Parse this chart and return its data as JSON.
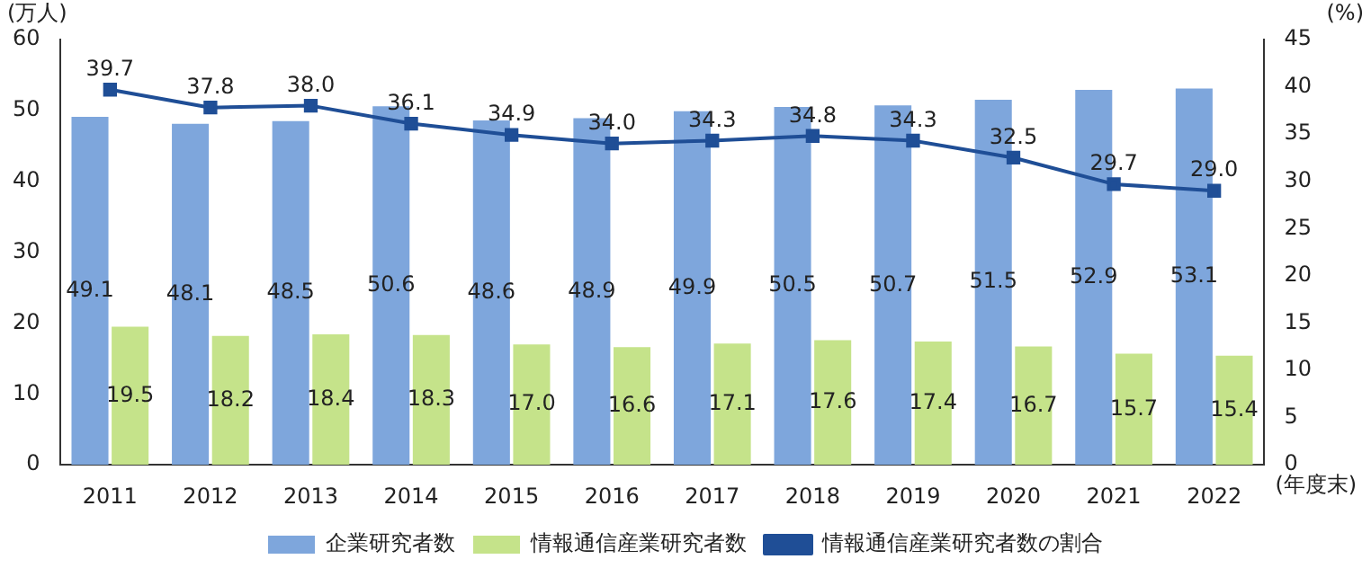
{
  "chart_data": {
    "type": "bar",
    "categories": [
      "2011",
      "2012",
      "2013",
      "2014",
      "2015",
      "2016",
      "2017",
      "2018",
      "2019",
      "2020",
      "2021",
      "2022"
    ],
    "xlabel": "(年度末)",
    "ylabel": "(万人)",
    "y2label": "(%)",
    "series": [
      {
        "name": "企業研究者数",
        "color": "#7ea6dc",
        "values": [
          49.1,
          48.1,
          48.5,
          50.6,
          48.6,
          48.9,
          49.9,
          50.5,
          50.7,
          51.5,
          52.9,
          53.1
        ],
        "value_labels": [
          "49.1",
          "48.1",
          "48.5",
          "50.6",
          "48.6",
          "48.9",
          "49.9",
          "50.5",
          "50.7",
          "51.5",
          "52.9",
          "53.1"
        ]
      },
      {
        "name": "情報通信産業研究者数",
        "color": "#c5e38a",
        "values": [
          19.5,
          18.2,
          18.4,
          18.3,
          17.0,
          16.6,
          17.1,
          17.6,
          17.4,
          16.7,
          15.7,
          15.4
        ],
        "value_labels": [
          "19.5",
          "18.2",
          "18.4",
          "18.3",
          "17.0",
          "16.6",
          "17.1",
          "17.6",
          "17.4",
          "16.7",
          "15.7",
          "15.4"
        ]
      },
      {
        "name": "情報通信産業研究者数の割合",
        "type": "line",
        "axis": "y2",
        "color": "#1f4e96",
        "marker": "square",
        "values": [
          39.7,
          37.8,
          38.0,
          36.1,
          34.9,
          34.0,
          34.3,
          34.8,
          34.3,
          32.5,
          29.7,
          29.0
        ],
        "value_labels": [
          "39.7",
          "37.8",
          "38.0",
          "36.1",
          "34.9",
          "34.0",
          "34.3",
          "34.8",
          "34.3",
          "32.5",
          "29.7",
          "29.0"
        ]
      }
    ],
    "ylim": [
      0,
      60
    ],
    "yticks": [
      0,
      10,
      20,
      30,
      40,
      50,
      60
    ],
    "y2lim": [
      0,
      45
    ],
    "y2ticks": [
      0,
      5,
      10,
      15,
      20,
      25,
      30,
      35,
      40,
      45
    ],
    "grid": false,
    "legend": "bottom"
  }
}
